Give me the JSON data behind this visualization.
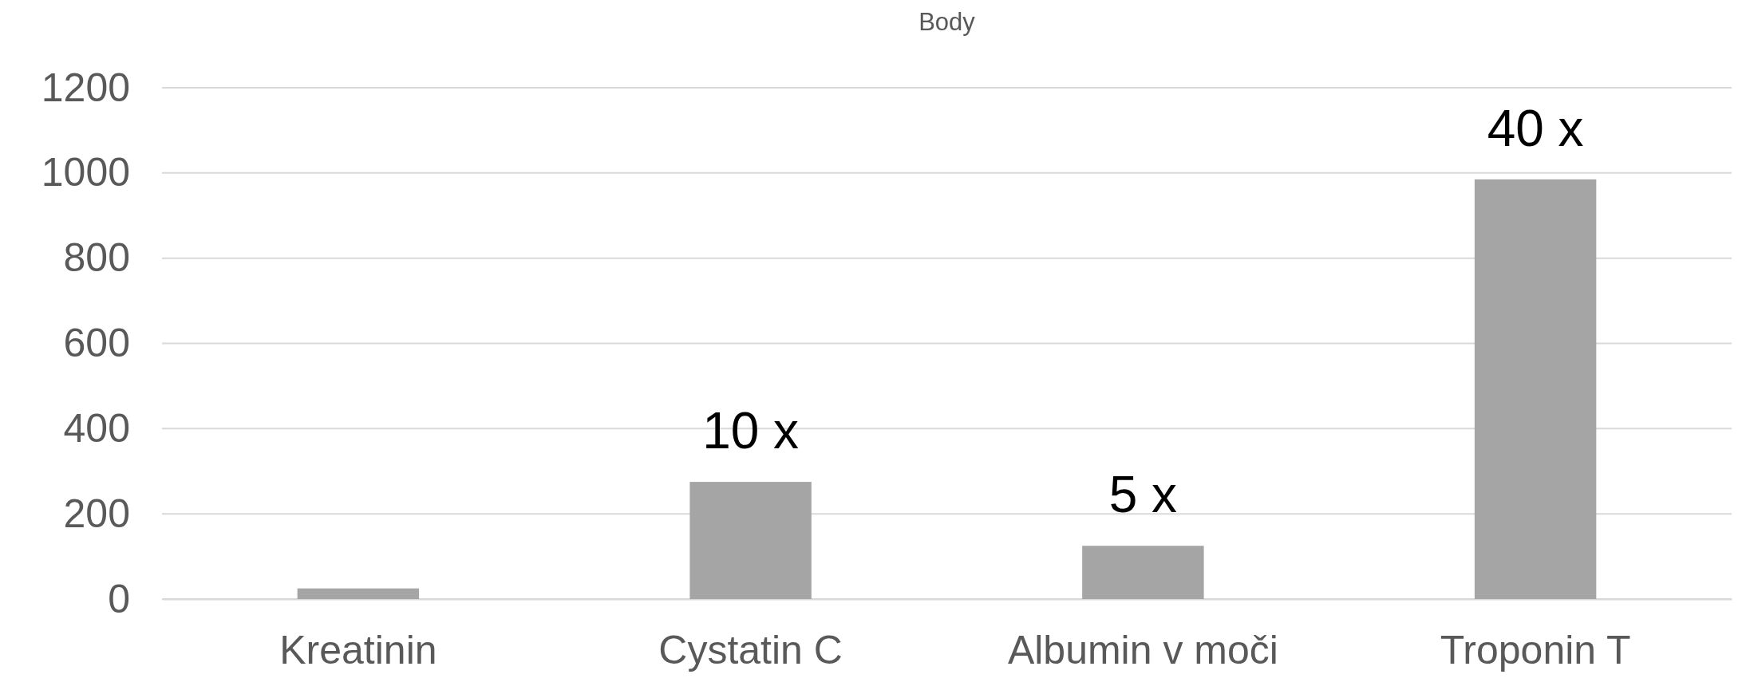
{
  "chart_data": {
    "type": "bar",
    "title": "Body",
    "categories": [
      "Kreatinin",
      "Cystatin C",
      "Albumin v moči",
      "Troponin T"
    ],
    "values": [
      25,
      275,
      125,
      985
    ],
    "color": "#a5a5a5",
    "annotations": [
      {
        "text": "10 x",
        "x": "Cystatin C",
        "y": 275
      },
      {
        "text": "5 x",
        "x": "Albumin v moči",
        "y": 125
      },
      {
        "text": "40 x",
        "x": "Troponin T",
        "y": 985
      }
    ],
    "ylim": [
      0,
      1200
    ],
    "yticks": [
      0,
      200,
      400,
      600,
      800,
      1000,
      1200
    ],
    "grid": "y"
  }
}
